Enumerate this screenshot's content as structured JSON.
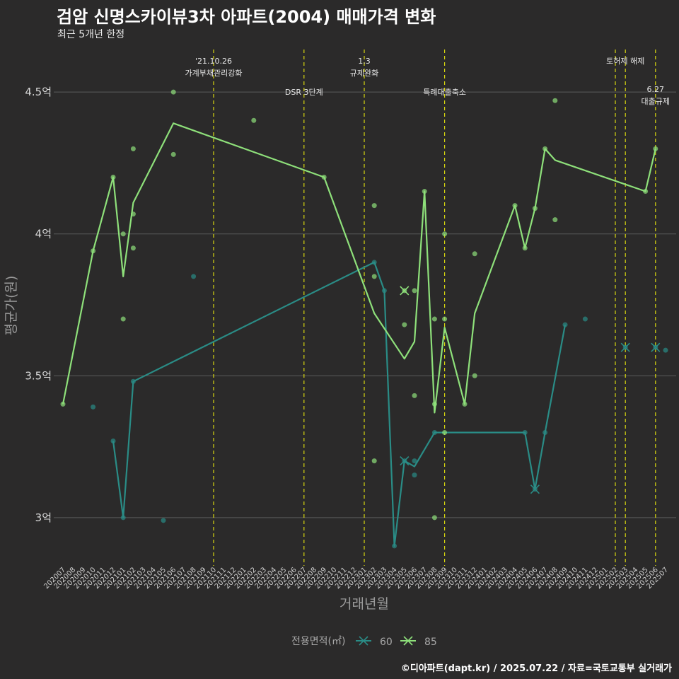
{
  "header": {
    "title": "검암 신명스카이뷰3차 아파트(2004) 매매가격 변화",
    "subtitle": "최근 5개년 한정"
  },
  "caption": "©디아파트(dapt.kr) / 2025.07.22 / 자료=국토교통부 실거래가",
  "colors": {
    "background": "#2b2a2a",
    "series_60": "#2a8c86",
    "series_85": "#8ee07a",
    "event_line": "#d8d80f",
    "grid": "#5a5a5a"
  },
  "chart_data": {
    "type": "line",
    "xlabel": "거래년월",
    "ylabel": "평균가(원)",
    "ylim": [
      2.83,
      4.65
    ],
    "yticks": [
      {
        "value": 3.0,
        "label": "3억"
      },
      {
        "value": 3.5,
        "label": "3.5억"
      },
      {
        "value": 4.0,
        "label": "4억"
      },
      {
        "value": 4.5,
        "label": "4.5억"
      }
    ],
    "categories": [
      "202007",
      "202008",
      "202009",
      "202010",
      "202011",
      "202012",
      "202101",
      "202102",
      "202103",
      "202104",
      "202105",
      "202106",
      "202107",
      "202108",
      "202109",
      "202110",
      "202111",
      "202112",
      "202201",
      "202202",
      "202203",
      "202204",
      "202205",
      "202206",
      "202207",
      "202208",
      "202209",
      "202210",
      "202211",
      "202212",
      "202301",
      "202302",
      "202303",
      "202304",
      "202305",
      "202306",
      "202307",
      "202308",
      "202309",
      "202310",
      "202311",
      "202312",
      "202401",
      "202402",
      "202403",
      "202404",
      "202405",
      "202406",
      "202407",
      "202408",
      "202409",
      "202410",
      "202411",
      "202412",
      "202501",
      "202502",
      "202503",
      "202504",
      "202505",
      "202506",
      "202507"
    ],
    "legend": {
      "title": "전용면적(㎡)",
      "position": "bottom"
    },
    "series": [
      {
        "name": "60",
        "line": [
          [
            "202012",
            3.27
          ],
          [
            "202101",
            3.0
          ],
          [
            "202102",
            3.48
          ],
          [
            "202302",
            3.9
          ],
          [
            "202303",
            3.8
          ],
          [
            "202304",
            2.9
          ],
          [
            "202305",
            3.2
          ],
          [
            "202306",
            3.18
          ],
          [
            "202308",
            3.3
          ],
          [
            "202405",
            3.3
          ],
          [
            "202406",
            3.1
          ],
          [
            "202407",
            3.3
          ],
          [
            "202409",
            3.68
          ]
        ],
        "points": [
          [
            "202010",
            3.39
          ],
          [
            "202012",
            3.27
          ],
          [
            "202101",
            3.0
          ],
          [
            "202102",
            3.48
          ],
          [
            "202105",
            2.99
          ],
          [
            "202108",
            3.85
          ],
          [
            "202302",
            3.9
          ],
          [
            "202303",
            3.8
          ],
          [
            "202304",
            2.9
          ],
          [
            "202305",
            3.2
          ],
          [
            "202306",
            3.15
          ],
          [
            "202306",
            3.2
          ],
          [
            "202308",
            3.3
          ],
          [
            "202405",
            3.3
          ],
          [
            "202406",
            3.1
          ],
          [
            "202407",
            3.3
          ],
          [
            "202409",
            3.68
          ],
          [
            "202411",
            3.7
          ],
          [
            "202503",
            3.6
          ],
          [
            "202506",
            3.6
          ],
          [
            "202507",
            3.59
          ]
        ],
        "crosses": [
          [
            "202305",
            3.2
          ],
          [
            "202406",
            3.1
          ],
          [
            "202503",
            3.6
          ],
          [
            "202506",
            3.6
          ]
        ]
      },
      {
        "name": "85",
        "line": [
          [
            "202007",
            3.4
          ],
          [
            "202010",
            3.94
          ],
          [
            "202012",
            4.2
          ],
          [
            "202101",
            3.85
          ],
          [
            "202102",
            4.11
          ],
          [
            "202106",
            4.39
          ],
          [
            "202209",
            4.2
          ],
          [
            "202302",
            3.72
          ],
          [
            "202305",
            3.56
          ],
          [
            "202306",
            3.62
          ],
          [
            "202307",
            4.15
          ],
          [
            "202308",
            3.37
          ],
          [
            "202309",
            3.67
          ],
          [
            "202311",
            3.4
          ],
          [
            "202312",
            3.72
          ],
          [
            "202404",
            4.1
          ],
          [
            "202405",
            3.95
          ],
          [
            "202406",
            4.09
          ],
          [
            "202407",
            4.3
          ],
          [
            "202408",
            4.26
          ],
          [
            "202505",
            4.15
          ],
          [
            "202506",
            4.3
          ]
        ],
        "points": [
          [
            "202007",
            3.4
          ],
          [
            "202010",
            3.94
          ],
          [
            "202012",
            4.2
          ],
          [
            "202101",
            4.0
          ],
          [
            "202101",
            3.7
          ],
          [
            "202102",
            4.3
          ],
          [
            "202102",
            4.07
          ],
          [
            "202102",
            3.95
          ],
          [
            "202106",
            4.5
          ],
          [
            "202106",
            4.28
          ],
          [
            "202202",
            4.4
          ],
          [
            "202209",
            4.2
          ],
          [
            "202302",
            4.1
          ],
          [
            "202302",
            3.85
          ],
          [
            "202302",
            3.2
          ],
          [
            "202305",
            3.8
          ],
          [
            "202305",
            3.68
          ],
          [
            "202306",
            3.8
          ],
          [
            "202306",
            3.43
          ],
          [
            "202307",
            4.15
          ],
          [
            "202308",
            3.7
          ],
          [
            "202308",
            3.4
          ],
          [
            "202308",
            3.0
          ],
          [
            "202309",
            4.0
          ],
          [
            "202309",
            3.7
          ],
          [
            "202309",
            3.3
          ],
          [
            "202311",
            3.4
          ],
          [
            "202312",
            3.93
          ],
          [
            "202312",
            3.5
          ],
          [
            "202404",
            4.1
          ],
          [
            "202405",
            3.95
          ],
          [
            "202406",
            4.09
          ],
          [
            "202407",
            4.3
          ],
          [
            "202408",
            4.47
          ],
          [
            "202408",
            4.05
          ],
          [
            "202505",
            4.15
          ],
          [
            "202506",
            4.3
          ]
        ],
        "crosses": [
          [
            "202305",
            3.8
          ]
        ]
      }
    ],
    "events": [
      {
        "x": "202110",
        "lines": [
          "'21.10.26",
          "가계부채관리강화"
        ],
        "tier": 0
      },
      {
        "x": "202207",
        "lines": [
          "DSR 3단계"
        ],
        "tier": 1
      },
      {
        "x": "202301",
        "lines": [
          "1.3",
          "규제완화"
        ],
        "tier": 0
      },
      {
        "x": "202309",
        "lines": [
          "특례대출축소"
        ],
        "tier": 1
      },
      {
        "x": "202502",
        "lines": [],
        "tier": 0
      },
      {
        "x": "202503",
        "lines": [
          "토허제 해제"
        ],
        "tier": 0
      },
      {
        "x": "202506",
        "lines": [
          "6.27",
          "대출규제"
        ],
        "tier": 2
      }
    ]
  }
}
